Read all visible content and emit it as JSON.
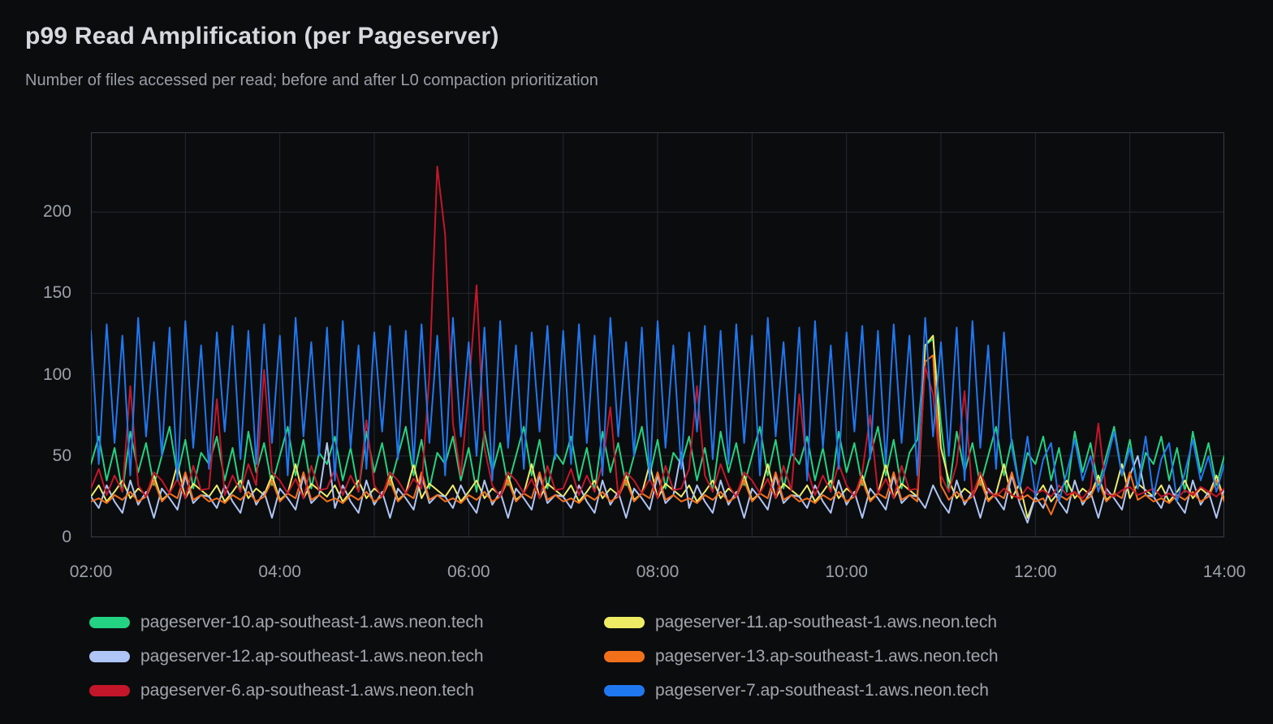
{
  "chart_data": {
    "type": "line",
    "title": "p99 Read Amplification (per Pageserver)",
    "subtitle": "Number of files accessed per read; before and after L0 compaction prioritization",
    "x_unit": "time of day (HH:MM)",
    "x_start_hour": 2,
    "x_end_hour": 14,
    "x_step_minutes": 5,
    "x_tick_labels": [
      "02:00",
      "04:00",
      "06:00",
      "08:00",
      "10:00",
      "12:00",
      "14:00"
    ],
    "x_gridline_every_hours": 1,
    "y_ticks": [
      0,
      50,
      100,
      150,
      200
    ],
    "y_axis_max": 249,
    "grid": true,
    "legend_position": "bottom",
    "colors": {
      "background": "#0B0C0E",
      "gridline": "#26292E",
      "plot_border": "#3A3D43",
      "title_text": "#D8D9DC",
      "subtitle_text": "#9A9EA6",
      "tick_text": "#9CA1A9",
      "legend_text": "#A2A6AD"
    },
    "series": [
      {
        "name": "pageserver-10.ap-southeast-1.aws.neon.tech",
        "color": "#23D282",
        "values": [
          45,
          62,
          35,
          55,
          28,
          65,
          40,
          58,
          32,
          50,
          68,
          38,
          60,
          30,
          52,
          45,
          62,
          35,
          55,
          28,
          65,
          40,
          58,
          32,
          50,
          68,
          38,
          60,
          30,
          52,
          45,
          62,
          35,
          55,
          28,
          65,
          40,
          58,
          32,
          50,
          68,
          38,
          60,
          30,
          52,
          45,
          62,
          35,
          55,
          28,
          65,
          40,
          58,
          32,
          50,
          68,
          38,
          60,
          30,
          52,
          45,
          62,
          35,
          55,
          28,
          65,
          40,
          58,
          32,
          50,
          68,
          38,
          60,
          30,
          52,
          45,
          62,
          35,
          55,
          28,
          65,
          40,
          58,
          32,
          50,
          68,
          38,
          60,
          30,
          52,
          45,
          62,
          35,
          55,
          28,
          65,
          40,
          58,
          32,
          50,
          68,
          38,
          60,
          30,
          52,
          60,
          118,
          122,
          70,
          28,
          65,
          40,
          58,
          32,
          50,
          68,
          38,
          60,
          30,
          52,
          45,
          62,
          35,
          55,
          28,
          65,
          40,
          58,
          32,
          50,
          68,
          38,
          60,
          30,
          52,
          45,
          62,
          35,
          55,
          28,
          65,
          40,
          58,
          32,
          50
        ]
      },
      {
        "name": "pageserver-11.ap-southeast-1.aws.neon.tech",
        "color": "#EEEC64",
        "values": [
          25,
          32,
          22,
          28,
          35,
          24,
          30,
          26,
          38,
          23,
          27,
          45,
          24,
          33,
          29,
          25,
          32,
          22,
          28,
          35,
          24,
          30,
          26,
          38,
          23,
          27,
          45,
          24,
          33,
          29,
          25,
          32,
          22,
          28,
          35,
          24,
          30,
          26,
          38,
          23,
          27,
          45,
          24,
          33,
          29,
          25,
          32,
          22,
          28,
          35,
          24,
          30,
          26,
          38,
          23,
          27,
          45,
          24,
          33,
          29,
          25,
          32,
          22,
          28,
          35,
          24,
          30,
          26,
          38,
          23,
          27,
          45,
          24,
          33,
          29,
          25,
          32,
          22,
          28,
          35,
          24,
          30,
          26,
          38,
          23,
          27,
          45,
          24,
          33,
          29,
          25,
          32,
          22,
          28,
          35,
          24,
          30,
          26,
          38,
          23,
          27,
          45,
          24,
          33,
          29,
          25,
          118,
          124,
          55,
          35,
          24,
          30,
          26,
          38,
          23,
          27,
          45,
          24,
          33,
          12,
          25,
          32,
          22,
          28,
          35,
          24,
          30,
          26,
          38,
          23,
          27,
          45,
          24,
          33,
          29,
          25,
          32,
          22,
          28,
          35,
          24,
          30,
          26,
          38,
          23
        ]
      },
      {
        "name": "pageserver-12.ap-southeast-1.aws.neon.tech",
        "color": "#AEC5F5",
        "values": [
          25,
          18,
          32,
          22,
          15,
          35,
          20,
          28,
          12,
          30,
          24,
          17,
          38,
          21,
          26,
          25,
          18,
          32,
          22,
          15,
          35,
          20,
          28,
          12,
          30,
          24,
          17,
          38,
          21,
          26,
          58,
          18,
          32,
          22,
          15,
          35,
          20,
          28,
          12,
          30,
          24,
          17,
          38,
          21,
          26,
          25,
          18,
          32,
          22,
          15,
          35,
          20,
          28,
          12,
          30,
          24,
          17,
          38,
          21,
          26,
          25,
          18,
          32,
          22,
          15,
          35,
          20,
          28,
          12,
          30,
          24,
          17,
          38,
          21,
          26,
          52,
          18,
          32,
          22,
          15,
          35,
          20,
          28,
          12,
          30,
          24,
          17,
          38,
          21,
          26,
          25,
          18,
          32,
          22,
          15,
          35,
          20,
          28,
          12,
          30,
          24,
          17,
          38,
          21,
          26,
          25,
          18,
          32,
          22,
          15,
          35,
          20,
          28,
          12,
          30,
          24,
          17,
          38,
          21,
          9,
          25,
          18,
          32,
          22,
          15,
          35,
          20,
          28,
          12,
          30,
          24,
          17,
          38,
          50,
          26,
          25,
          18,
          32,
          22,
          15,
          35,
          20,
          28,
          12,
          30
        ]
      },
      {
        "name": "pageserver-13.ap-southeast-1.aws.neon.tech",
        "color": "#F3701B",
        "values": [
          22,
          24,
          21,
          26,
          23,
          28,
          22,
          25,
          35,
          22,
          27,
          24,
          40,
          23,
          26,
          22,
          24,
          21,
          26,
          23,
          28,
          22,
          25,
          35,
          22,
          27,
          24,
          40,
          23,
          26,
          22,
          24,
          21,
          26,
          23,
          28,
          22,
          25,
          35,
          22,
          27,
          24,
          40,
          23,
          26,
          22,
          24,
          21,
          26,
          23,
          28,
          22,
          25,
          35,
          22,
          27,
          24,
          40,
          23,
          26,
          22,
          24,
          21,
          26,
          23,
          28,
          22,
          25,
          35,
          22,
          27,
          24,
          40,
          23,
          26,
          22,
          24,
          21,
          26,
          23,
          28,
          22,
          25,
          35,
          22,
          27,
          24,
          40,
          23,
          26,
          22,
          24,
          21,
          26,
          23,
          28,
          22,
          25,
          35,
          22,
          27,
          24,
          40,
          23,
          26,
          22,
          108,
          112,
          32,
          23,
          28,
          22,
          25,
          35,
          22,
          27,
          24,
          40,
          23,
          26,
          22,
          24,
          14,
          26,
          23,
          28,
          22,
          25,
          35,
          22,
          27,
          24,
          40,
          23,
          26,
          22,
          24,
          21,
          26,
          23,
          28,
          22,
          25,
          35,
          22
        ]
      },
      {
        "name": "pageserver-6.ap-southeast-1.aws.neon.tech",
        "color": "#C4162A",
        "values": [
          30,
          42,
          26,
          38,
          28,
          93,
          32,
          25,
          40,
          35,
          27,
          36,
          24,
          44,
          29,
          30,
          85,
          26,
          38,
          28,
          45,
          32,
          103,
          40,
          35,
          27,
          36,
          24,
          44,
          29,
          30,
          42,
          26,
          38,
          28,
          72,
          32,
          25,
          40,
          35,
          27,
          36,
          30,
          100,
          228,
          186,
          70,
          38,
          90,
          155,
          55,
          32,
          25,
          40,
          35,
          27,
          36,
          24,
          44,
          29,
          30,
          42,
          26,
          38,
          28,
          45,
          80,
          25,
          40,
          35,
          27,
          36,
          24,
          44,
          29,
          30,
          42,
          93,
          38,
          28,
          45,
          32,
          25,
          40,
          35,
          27,
          36,
          24,
          44,
          29,
          88,
          42,
          26,
          38,
          28,
          45,
          32,
          25,
          40,
          75,
          27,
          36,
          24,
          44,
          29,
          30,
          105,
          88,
          38,
          28,
          45,
          90,
          25,
          40,
          28,
          25,
          30,
          26,
          24,
          31,
          27,
          29,
          25,
          32,
          26,
          28,
          24,
          30,
          70,
          27,
          25,
          29,
          31,
          26,
          28,
          30,
          25,
          27,
          24,
          29,
          26,
          31,
          28,
          25,
          30
        ]
      },
      {
        "name": "pageserver-7.ap-southeast-1.aws.neon.tech",
        "color": "#1F78F0",
        "values": [
          127,
          45,
          131,
          58,
          124,
          38,
          135,
          62,
          120,
          50,
          129,
          35,
          133,
          55,
          118,
          42,
          126,
          65,
          130,
          48,
          127,
          45,
          131,
          58,
          124,
          38,
          135,
          62,
          120,
          50,
          129,
          35,
          133,
          55,
          118,
          42,
          126,
          65,
          130,
          48,
          127,
          45,
          131,
          58,
          124,
          38,
          135,
          62,
          120,
          50,
          129,
          35,
          133,
          55,
          118,
          42,
          126,
          65,
          130,
          48,
          127,
          45,
          131,
          58,
          124,
          38,
          135,
          62,
          120,
          50,
          129,
          35,
          133,
          55,
          118,
          42,
          126,
          65,
          130,
          48,
          127,
          45,
          131,
          58,
          124,
          38,
          135,
          62,
          120,
          50,
          129,
          35,
          133,
          55,
          118,
          42,
          126,
          65,
          130,
          48,
          127,
          45,
          131,
          58,
          124,
          38,
          135,
          62,
          120,
          50,
          129,
          35,
          133,
          55,
          118,
          42,
          126,
          55,
          30,
          62,
          25,
          48,
          58,
          22,
          40,
          60,
          35,
          50,
          28,
          45,
          65,
          38,
          55,
          30,
          62,
          25,
          48,
          58,
          22,
          40,
          60,
          35,
          50,
          28,
          45
        ]
      }
    ]
  }
}
